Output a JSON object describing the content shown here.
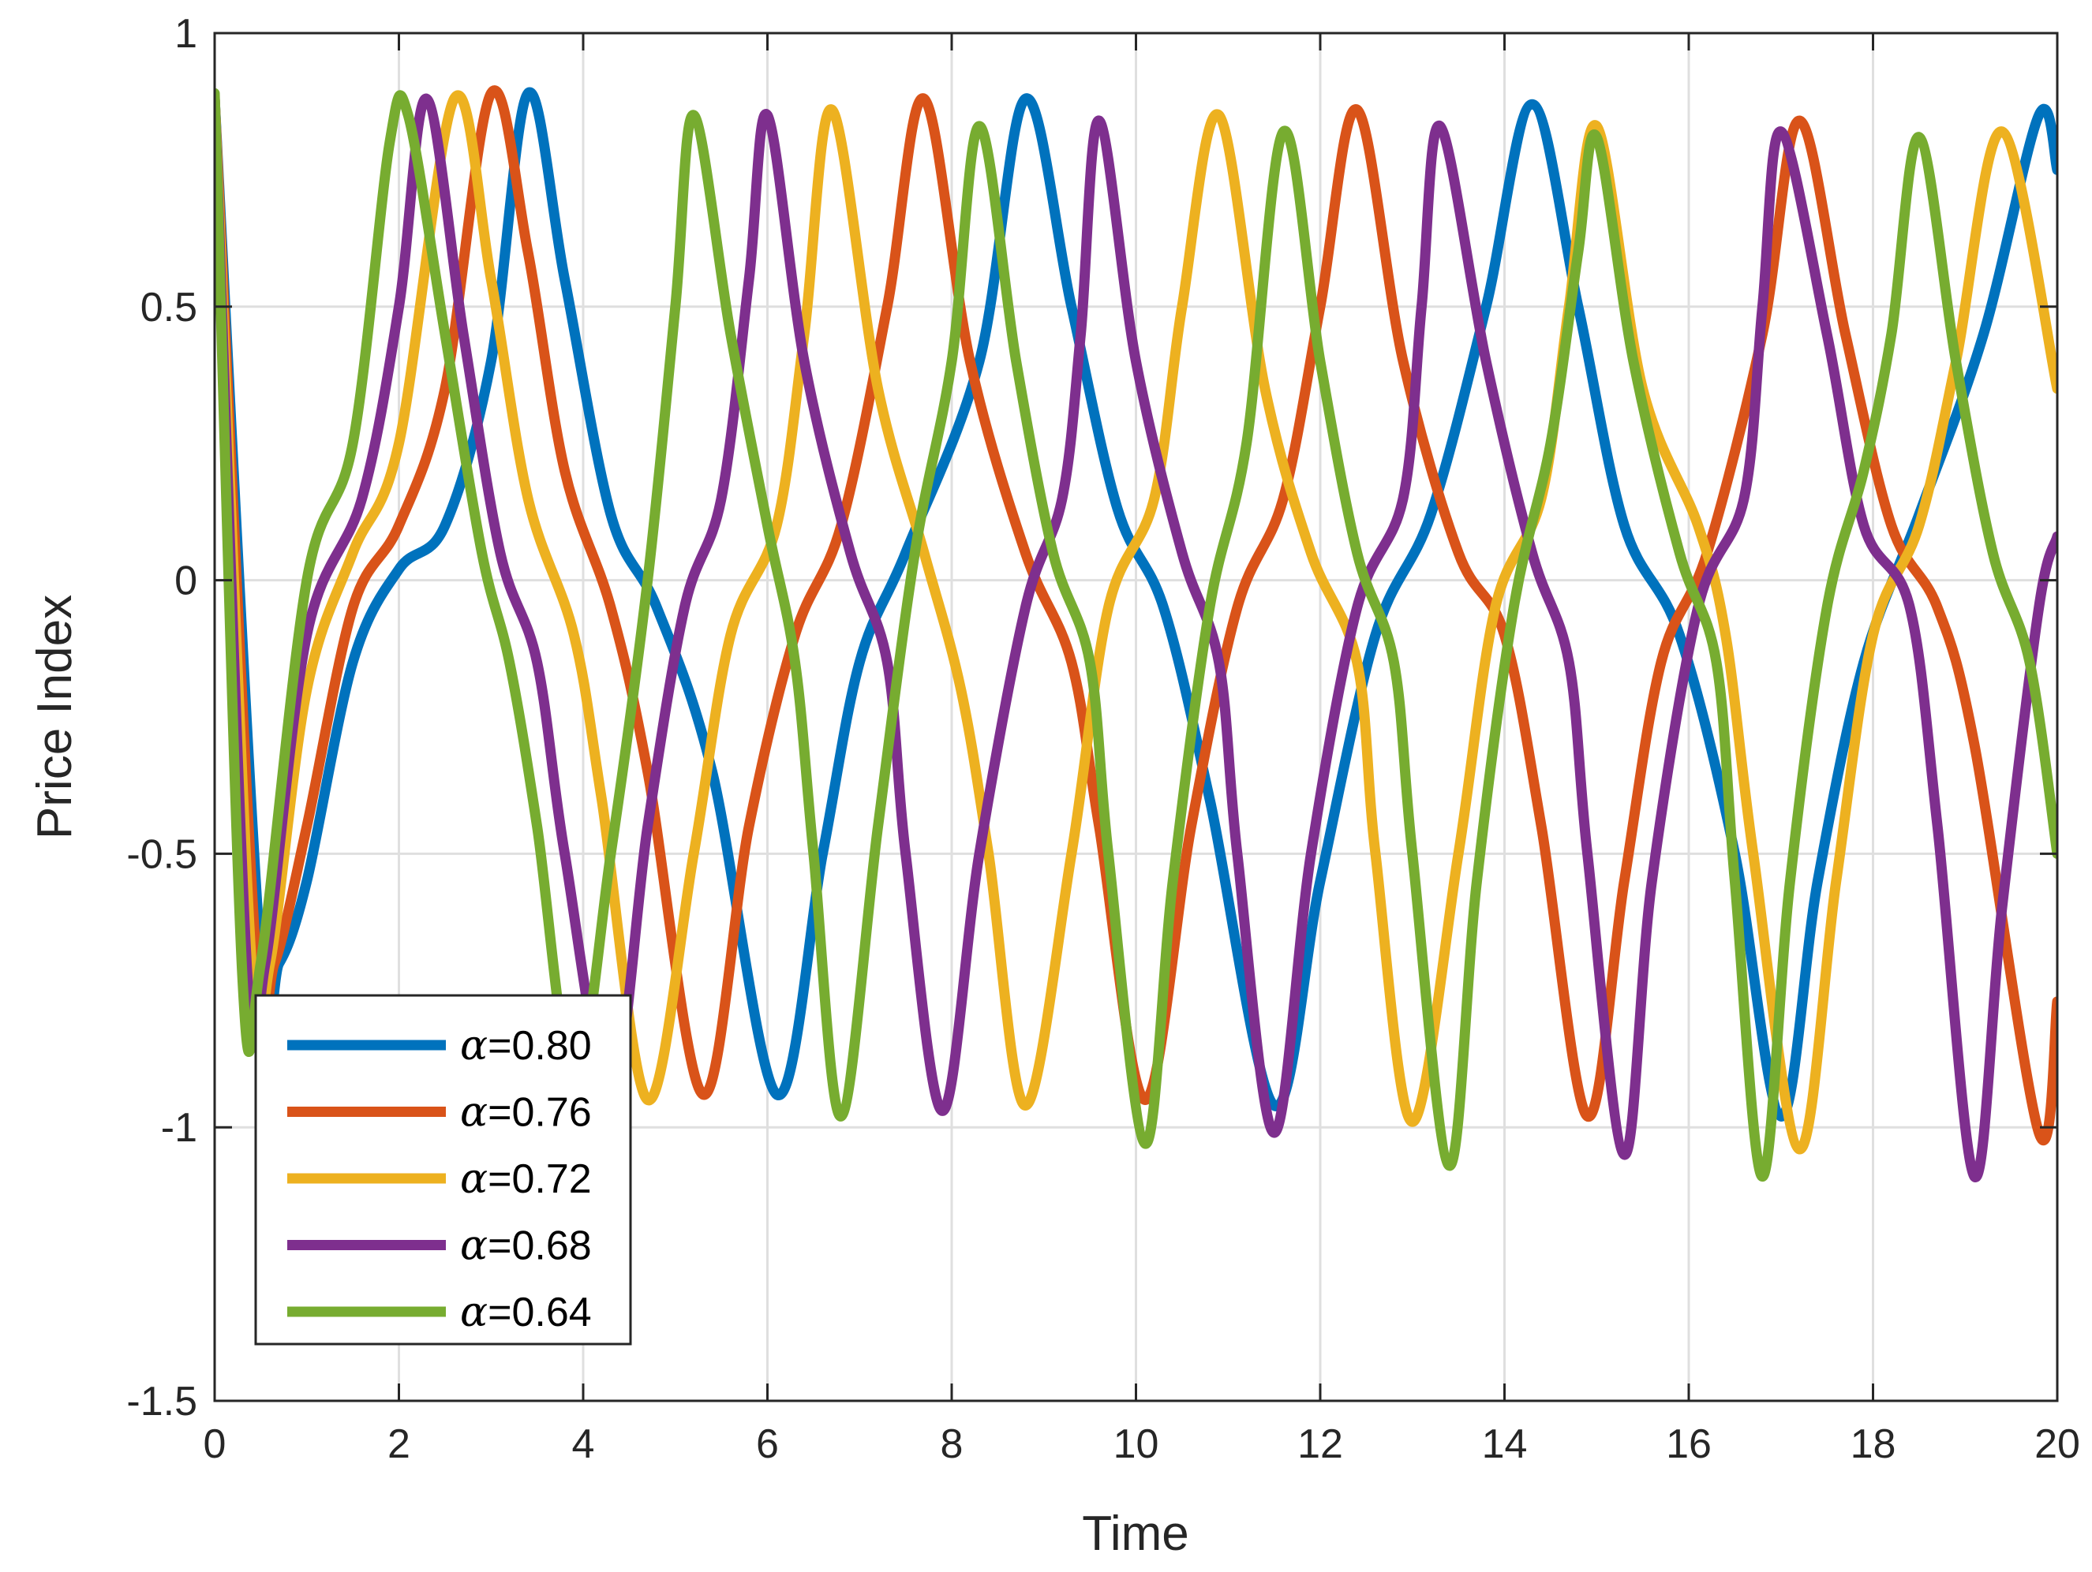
{
  "chart_data": {
    "type": "line",
    "xlabel": "Time",
    "ylabel": "Price Index",
    "xlim": [
      0,
      20
    ],
    "ylim": [
      -1.5,
      1
    ],
    "xticks": [
      "0",
      "2",
      "4",
      "6",
      "8",
      "10",
      "12",
      "14",
      "16",
      "18",
      "20"
    ],
    "yticks": [
      "-1.5",
      "-1",
      "-0.5",
      "0",
      "0.5",
      "1"
    ],
    "grid": true,
    "legend_position": "bottom-left",
    "series": [
      {
        "name": "α=0.80",
        "legend_symbol": "α",
        "legend_value": "=0.80",
        "color": "#0072BD",
        "points": [
          [
            0,
            0.88
          ],
          [
            0.5,
            -0.69
          ],
          [
            0.7,
            -0.7
          ],
          [
            1.0,
            -0.55
          ],
          [
            1.5,
            -0.15
          ],
          [
            2.0,
            0.02
          ],
          [
            2.5,
            0.1
          ],
          [
            3.0,
            0.4
          ],
          [
            3.4,
            0.89
          ],
          [
            3.8,
            0.55
          ],
          [
            4.3,
            0.12
          ],
          [
            4.8,
            -0.05
          ],
          [
            5.4,
            -0.35
          ],
          [
            6.1,
            -0.94
          ],
          [
            6.6,
            -0.5
          ],
          [
            7.0,
            -0.15
          ],
          [
            7.5,
            0.05
          ],
          [
            8.3,
            0.4
          ],
          [
            8.8,
            0.88
          ],
          [
            9.3,
            0.5
          ],
          [
            9.8,
            0.13
          ],
          [
            10.3,
            -0.05
          ],
          [
            10.8,
            -0.4
          ],
          [
            11.5,
            -0.96
          ],
          [
            12.0,
            -0.55
          ],
          [
            12.6,
            -0.1
          ],
          [
            13.2,
            0.12
          ],
          [
            13.8,
            0.5
          ],
          [
            14.3,
            0.87
          ],
          [
            14.8,
            0.5
          ],
          [
            15.3,
            0.1
          ],
          [
            15.9,
            -0.1
          ],
          [
            16.5,
            -0.5
          ],
          [
            17.0,
            -0.98
          ],
          [
            17.4,
            -0.55
          ],
          [
            17.9,
            -0.15
          ],
          [
            18.5,
            0.12
          ],
          [
            19.2,
            0.45
          ],
          [
            19.8,
            0.85
          ],
          [
            20.0,
            0.75
          ]
        ]
      },
      {
        "name": "α=0.76",
        "legend_symbol": "α",
        "legend_value": "=0.76",
        "color": "#D95319",
        "points": [
          [
            0,
            0.88
          ],
          [
            0.45,
            -0.69
          ],
          [
            0.65,
            -0.7
          ],
          [
            1.0,
            -0.45
          ],
          [
            1.5,
            -0.05
          ],
          [
            2.0,
            0.1
          ],
          [
            2.5,
            0.35
          ],
          [
            3.0,
            0.89
          ],
          [
            3.4,
            0.6
          ],
          [
            3.8,
            0.2
          ],
          [
            4.3,
            -0.05
          ],
          [
            4.7,
            -0.35
          ],
          [
            5.3,
            -0.94
          ],
          [
            5.8,
            -0.45
          ],
          [
            6.3,
            -0.1
          ],
          [
            6.8,
            0.1
          ],
          [
            7.3,
            0.5
          ],
          [
            7.7,
            0.88
          ],
          [
            8.2,
            0.4
          ],
          [
            8.8,
            0.05
          ],
          [
            9.3,
            -0.15
          ],
          [
            9.6,
            -0.45
          ],
          [
            10.1,
            -0.95
          ],
          [
            10.6,
            -0.45
          ],
          [
            11.1,
            -0.05
          ],
          [
            11.6,
            0.15
          ],
          [
            12.0,
            0.5
          ],
          [
            12.4,
            0.86
          ],
          [
            12.9,
            0.4
          ],
          [
            13.5,
            0.05
          ],
          [
            14.0,
            -0.1
          ],
          [
            14.4,
            -0.45
          ],
          [
            14.9,
            -0.98
          ],
          [
            15.3,
            -0.55
          ],
          [
            15.7,
            -0.15
          ],
          [
            16.2,
            0.05
          ],
          [
            16.8,
            0.45
          ],
          [
            17.2,
            0.84
          ],
          [
            17.7,
            0.45
          ],
          [
            18.2,
            0.1
          ],
          [
            18.7,
            -0.05
          ],
          [
            19.1,
            -0.3
          ],
          [
            19.8,
            -1.01
          ],
          [
            20.0,
            -0.77
          ]
        ]
      },
      {
        "name": "α=0.72",
        "legend_symbol": "α",
        "legend_value": "=0.72",
        "color": "#EDB120",
        "points": [
          [
            0,
            0.88
          ],
          [
            0.4,
            -0.7
          ],
          [
            0.6,
            -0.7
          ],
          [
            1.0,
            -0.2
          ],
          [
            1.5,
            0.05
          ],
          [
            2.0,
            0.25
          ],
          [
            2.6,
            0.88
          ],
          [
            3.0,
            0.55
          ],
          [
            3.4,
            0.15
          ],
          [
            3.9,
            -0.1
          ],
          [
            4.2,
            -0.4
          ],
          [
            4.7,
            -0.95
          ],
          [
            5.2,
            -0.5
          ],
          [
            5.6,
            -0.1
          ],
          [
            6.1,
            0.1
          ],
          [
            6.4,
            0.45
          ],
          [
            6.7,
            0.86
          ],
          [
            7.2,
            0.35
          ],
          [
            7.7,
            0.05
          ],
          [
            8.1,
            -0.2
          ],
          [
            8.4,
            -0.5
          ],
          [
            8.8,
            -0.96
          ],
          [
            9.3,
            -0.5
          ],
          [
            9.7,
            -0.05
          ],
          [
            10.2,
            0.15
          ],
          [
            10.5,
            0.5
          ],
          [
            10.9,
            0.85
          ],
          [
            11.4,
            0.35
          ],
          [
            11.9,
            0.05
          ],
          [
            12.4,
            -0.15
          ],
          [
            12.6,
            -0.5
          ],
          [
            13.0,
            -0.99
          ],
          [
            13.5,
            -0.5
          ],
          [
            13.9,
            -0.05
          ],
          [
            14.4,
            0.15
          ],
          [
            14.7,
            0.5
          ],
          [
            15.0,
            0.83
          ],
          [
            15.5,
            0.35
          ],
          [
            16.1,
            0.1
          ],
          [
            16.4,
            -0.1
          ],
          [
            16.7,
            -0.5
          ],
          [
            17.2,
            -1.04
          ],
          [
            17.6,
            -0.55
          ],
          [
            18.0,
            -0.1
          ],
          [
            18.5,
            0.1
          ],
          [
            18.9,
            0.4
          ],
          [
            19.4,
            0.82
          ],
          [
            20.0,
            0.35
          ]
        ]
      },
      {
        "name": "α=0.68",
        "legend_symbol": "α",
        "legend_value": "=0.68",
        "color": "#7E2F8E",
        "points": [
          [
            0,
            0.88
          ],
          [
            0.35,
            -0.71
          ],
          [
            0.55,
            -0.7
          ],
          [
            1.0,
            -0.1
          ],
          [
            1.6,
            0.15
          ],
          [
            2.0,
            0.5
          ],
          [
            2.3,
            0.88
          ],
          [
            2.7,
            0.45
          ],
          [
            3.1,
            0.05
          ],
          [
            3.5,
            -0.15
          ],
          [
            3.8,
            -0.5
          ],
          [
            4.3,
            -0.94
          ],
          [
            4.7,
            -0.45
          ],
          [
            5.1,
            -0.05
          ],
          [
            5.5,
            0.15
          ],
          [
            5.8,
            0.55
          ],
          [
            6.0,
            0.85
          ],
          [
            6.4,
            0.4
          ],
          [
            6.9,
            0.05
          ],
          [
            7.3,
            -0.15
          ],
          [
            7.5,
            -0.5
          ],
          [
            7.9,
            -0.97
          ],
          [
            8.3,
            -0.5
          ],
          [
            8.8,
            -0.05
          ],
          [
            9.2,
            0.15
          ],
          [
            9.4,
            0.45
          ],
          [
            9.6,
            0.84
          ],
          [
            10.0,
            0.4
          ],
          [
            10.5,
            0.05
          ],
          [
            10.9,
            -0.15
          ],
          [
            11.1,
            -0.5
          ],
          [
            11.5,
            -1.01
          ],
          [
            11.9,
            -0.5
          ],
          [
            12.4,
            -0.05
          ],
          [
            12.9,
            0.15
          ],
          [
            13.1,
            0.5
          ],
          [
            13.3,
            0.83
          ],
          [
            13.8,
            0.4
          ],
          [
            14.3,
            0.05
          ],
          [
            14.7,
            -0.15
          ],
          [
            14.9,
            -0.5
          ],
          [
            15.3,
            -1.05
          ],
          [
            15.6,
            -0.55
          ],
          [
            16.1,
            -0.05
          ],
          [
            16.6,
            0.15
          ],
          [
            16.8,
            0.5
          ],
          [
            17.0,
            0.82
          ],
          [
            17.5,
            0.45
          ],
          [
            17.9,
            0.1
          ],
          [
            18.4,
            -0.05
          ],
          [
            18.7,
            -0.45
          ],
          [
            19.1,
            -1.09
          ],
          [
            19.4,
            -0.6
          ],
          [
            19.8,
            -0.05
          ],
          [
            20.0,
            0.08
          ]
        ]
      },
      {
        "name": "α=0.64",
        "legend_symbol": "α",
        "legend_value": "=0.64",
        "color": "#77AC30",
        "points": [
          [
            0,
            0.89
          ],
          [
            0.3,
            -0.72
          ],
          [
            0.5,
            -0.7
          ],
          [
            1.0,
            0.0
          ],
          [
            1.5,
            0.25
          ],
          [
            1.9,
            0.8
          ],
          [
            2.1,
            0.85
          ],
          [
            2.5,
            0.45
          ],
          [
            2.9,
            0.05
          ],
          [
            3.2,
            -0.15
          ],
          [
            3.5,
            -0.45
          ],
          [
            3.9,
            -0.92
          ],
          [
            4.3,
            -0.5
          ],
          [
            4.7,
            0.0
          ],
          [
            5.0,
            0.5
          ],
          [
            5.2,
            0.85
          ],
          [
            5.6,
            0.45
          ],
          [
            6.0,
            0.1
          ],
          [
            6.3,
            -0.15
          ],
          [
            6.5,
            -0.5
          ],
          [
            6.8,
            -0.98
          ],
          [
            7.2,
            -0.45
          ],
          [
            7.6,
            0.05
          ],
          [
            8.0,
            0.4
          ],
          [
            8.3,
            0.83
          ],
          [
            8.7,
            0.4
          ],
          [
            9.1,
            0.05
          ],
          [
            9.5,
            -0.15
          ],
          [
            9.7,
            -0.5
          ],
          [
            10.1,
            -1.03
          ],
          [
            10.4,
            -0.55
          ],
          [
            10.8,
            -0.05
          ],
          [
            11.2,
            0.25
          ],
          [
            11.6,
            0.82
          ],
          [
            12.0,
            0.4
          ],
          [
            12.4,
            0.05
          ],
          [
            12.8,
            -0.15
          ],
          [
            13.0,
            -0.5
          ],
          [
            13.4,
            -1.07
          ],
          [
            13.7,
            -0.55
          ],
          [
            14.1,
            -0.05
          ],
          [
            14.5,
            0.25
          ],
          [
            14.8,
            0.6
          ],
          [
            15.0,
            0.81
          ],
          [
            15.4,
            0.4
          ],
          [
            15.9,
            0.05
          ],
          [
            16.3,
            -0.15
          ],
          [
            16.5,
            -0.55
          ],
          [
            16.8,
            -1.09
          ],
          [
            17.1,
            -0.55
          ],
          [
            17.5,
            -0.05
          ],
          [
            17.9,
            0.2
          ],
          [
            18.2,
            0.45
          ],
          [
            18.5,
            0.81
          ],
          [
            18.9,
            0.4
          ],
          [
            19.3,
            0.05
          ],
          [
            19.7,
            -0.15
          ],
          [
            20.0,
            -0.5
          ]
        ]
      }
    ]
  }
}
